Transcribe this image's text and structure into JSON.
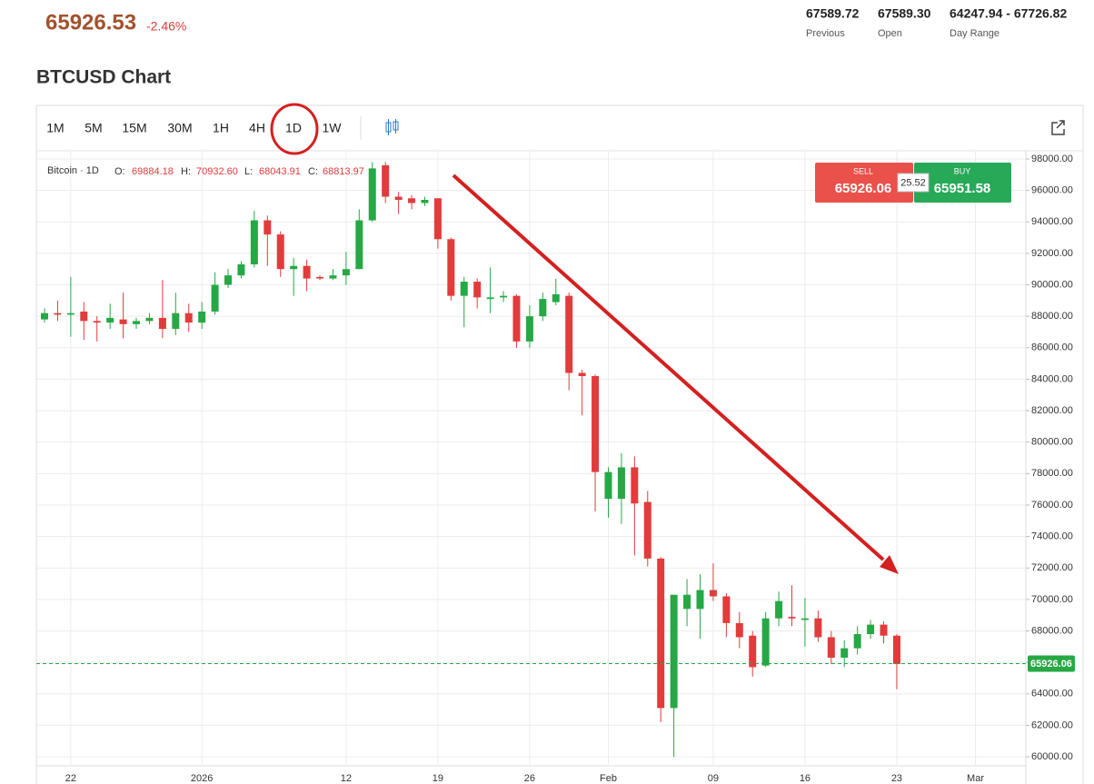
{
  "header": {
    "price": "65926.53",
    "change": "-2.46%",
    "stats": [
      {
        "text": "67589.72",
        "caption": "Previous"
      },
      {
        "text": "67589.30",
        "caption": "Open"
      },
      {
        "text": "64247.94 - 67726.82",
        "caption": "Day Range"
      }
    ]
  },
  "toolbar": {
    "timeframes": [
      "1M",
      "5M",
      "15M",
      "30M",
      "1H",
      "4H",
      "1D",
      "1W"
    ],
    "active": 6
  },
  "trade": {
    "sell_label": "SELL",
    "sell": "65926.06",
    "spread": "25.52",
    "buy_label": "BUY",
    "buy": "65951.58"
  },
  "chart_data": {
    "type": "candlestick",
    "title": "BTCUSD Chart",
    "ohlc_legend": {
      "symbol": "Bitcoin · 1D",
      "o_label": "O:",
      "o": "69884.18",
      "h_label": "H:",
      "h": "70932.60",
      "l_label": "L:",
      "l": "68043.91",
      "c_label": "C:",
      "c": "68813.97"
    },
    "categories": [
      null,
      null,
      "22",
      null,
      null,
      null,
      null,
      null,
      null,
      null,
      null,
      null,
      "2026",
      null,
      null,
      null,
      null,
      null,
      null,
      null,
      null,
      null,
      null,
      "12",
      null,
      null,
      null,
      null,
      null,
      null,
      "19",
      null,
      null,
      null,
      null,
      null,
      null,
      "26",
      null,
      null,
      null,
      null,
      null,
      "Feb",
      null,
      null,
      null,
      null,
      null,
      null,
      null,
      "09",
      null,
      null,
      null,
      null,
      null,
      null,
      "16",
      null,
      null,
      null,
      null,
      null,
      null,
      "23",
      null,
      null,
      null,
      null,
      null,
      "Mar"
    ],
    "open": [
      87800,
      88200,
      88100,
      88300,
      87700,
      87600,
      87800,
      87500,
      87700,
      87900,
      87200,
      88200,
      87600,
      88300,
      90000,
      90600,
      91300,
      94100,
      93200,
      91000,
      91200,
      90500,
      90400,
      90600,
      91000,
      94100,
      97600,
      95600,
      95500,
      95200,
      95500,
      92900,
      89300,
      90200,
      89100,
      89200,
      89300,
      86400,
      88000,
      88900,
      89300,
      84400,
      84200,
      76400,
      76400,
      78400,
      76200,
      72600,
      63100,
      69400,
      69400,
      70600,
      70200,
      68500,
      67700,
      65800,
      68800,
      68900,
      68700,
      68800,
      67600,
      66300,
      66900,
      67800,
      68400,
      67700,
      null,
      null,
      null,
      null,
      null,
      null
    ],
    "high": [
      88500,
      89000,
      90500,
      88900,
      88000,
      88800,
      89500,
      87900,
      88200,
      90300,
      89500,
      88800,
      88900,
      90800,
      91000,
      91500,
      94700,
      94400,
      93400,
      91700,
      91600,
      90600,
      91000,
      92100,
      94800,
      97800,
      97800,
      95900,
      95700,
      95600,
      95500,
      93000,
      90500,
      90400,
      91100,
      89600,
      89400,
      88700,
      89500,
      90400,
      89500,
      84600,
      84300,
      78400,
      79300,
      79100,
      76900,
      72700,
      70300,
      71300,
      71600,
      72300,
      70400,
      69200,
      68000,
      69200,
      70500,
      70900,
      70100,
      69300,
      68000,
      67400,
      68300,
      68700,
      68600,
      67800,
      null,
      null,
      null,
      null,
      null,
      null
    ],
    "low": [
      87600,
      87700,
      86700,
      86500,
      86400,
      87200,
      86600,
      87200,
      87500,
      86600,
      86800,
      87000,
      87200,
      88100,
      89800,
      90400,
      91100,
      91200,
      90500,
      89300,
      89600,
      90300,
      90300,
      90000,
      91000,
      94000,
      95200,
      94500,
      94800,
      95000,
      92300,
      89000,
      87300,
      88500,
      88200,
      88900,
      86000,
      86000,
      87700,
      88700,
      83300,
      81700,
      75600,
      75200,
      74800,
      72800,
      72100,
      62200,
      60000,
      68300,
      67500,
      69900,
      67600,
      66900,
      65100,
      65700,
      68300,
      68300,
      67000,
      67300,
      65900,
      65700,
      66500,
      67500,
      67200,
      64300,
      null,
      null,
      null,
      null,
      null,
      null
    ],
    "close": [
      88200,
      88100,
      88200,
      87700,
      87600,
      87900,
      87500,
      87700,
      87900,
      87200,
      88200,
      87600,
      88300,
      90000,
      90600,
      91300,
      94100,
      93200,
      91000,
      91200,
      90400,
      90400,
      90600,
      91000,
      94100,
      97400,
      95600,
      95400,
      95200,
      95400,
      92900,
      89300,
      90200,
      89200,
      89200,
      89300,
      86400,
      88000,
      89100,
      89400,
      84400,
      84200,
      78100,
      78100,
      78400,
      76100,
      72600,
      63100,
      70300,
      70300,
      70600,
      70200,
      68500,
      67600,
      65700,
      68800,
      69900,
      68800,
      68800,
      67600,
      66300,
      66900,
      67800,
      68400,
      67700,
      65900,
      null,
      null,
      null,
      null,
      null,
      null
    ],
    "up_color": "#26a845",
    "down_color": "#e23b3b",
    "ylim": [
      59600,
      98460
    ],
    "yticks": [
      {
        "value": 60000,
        "label": "60000.00"
      },
      {
        "value": 62000,
        "label": "62000.00"
      },
      {
        "value": 64000,
        "label": "64000.00"
      },
      {
        "value": 66000,
        "label": "66000.00"
      },
      {
        "value": 68000,
        "label": "68000.00"
      },
      {
        "value": 70000,
        "label": "70000.00"
      },
      {
        "value": 72000,
        "label": "72000.00"
      },
      {
        "value": 74000,
        "label": "74000.00"
      },
      {
        "value": 76000,
        "label": "76000.00"
      },
      {
        "value": 78000,
        "label": "78000.00"
      },
      {
        "value": 80000,
        "label": "80000.00"
      },
      {
        "value": 82000,
        "label": "82000.00"
      },
      {
        "value": 84000,
        "label": "84000.00"
      },
      {
        "value": 86000,
        "label": "86000.00"
      },
      {
        "value": 88000,
        "label": "88000.00"
      },
      {
        "value": 90000,
        "label": "90000.00"
      },
      {
        "value": 92000,
        "label": "92000.00"
      },
      {
        "value": 94000,
        "label": "94000.00"
      },
      {
        "value": 96000,
        "label": "96000.00"
      },
      {
        "value": 98000,
        "label": "98000.00"
      }
    ],
    "price_line": {
      "value": 65926.06,
      "label": "65926.06",
      "color": "#26a845"
    },
    "grid": true
  }
}
